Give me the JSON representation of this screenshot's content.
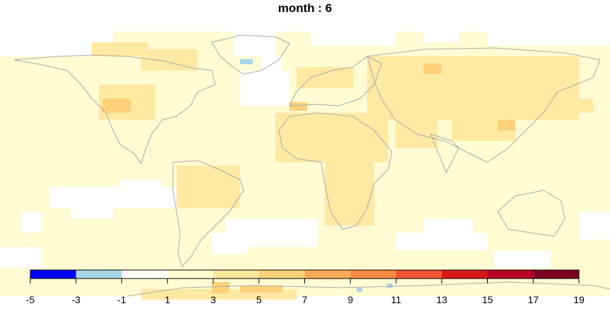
{
  "title": "month : 6",
  "legend": {
    "breaks": [
      -5,
      -3,
      -1,
      1,
      3,
      5,
      7,
      9,
      11,
      13,
      15,
      17,
      19
    ],
    "tick_labels": [
      "-5",
      "-3",
      "-1",
      "1",
      "3",
      "5",
      "7",
      "9",
      "11",
      "13",
      "15",
      "17",
      "19"
    ],
    "colors": [
      "#0000ff",
      "#a6d7e6",
      "#ffffff",
      "#ffffd0",
      "#ffe89a",
      "#fdd27a",
      "#fdaa55",
      "#f88a40",
      "#ef5530",
      "#d8171a",
      "#b80028",
      "#7d0022"
    ]
  },
  "map_colors": {
    "ocean_base": "#fffbd2",
    "land_warm": "#ffe9a3",
    "land_warmer": "#fdd27a",
    "no_change": "#ffffff",
    "cool": "#a6d7e6",
    "coastline": "#a9a9a9"
  }
}
